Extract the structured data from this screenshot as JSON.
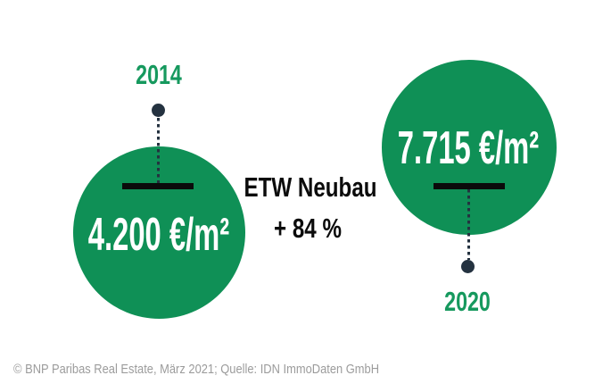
{
  "chart_data": {
    "type": "bar",
    "style": "proportional-circle-pictogram",
    "categories": [
      "2014",
      "2020"
    ],
    "values": [
      4200,
      7715
    ],
    "value_labels": [
      "4.200 €/m²",
      "7.715 €/m²"
    ],
    "unit": "€/m²",
    "title": "ETW Neubau",
    "change_label": "+ 84 %",
    "change_percent": 84,
    "source": "© BNP Paribas Real Estate, März 2021; Quelle: IDN ImmoDaten GmbH",
    "legend": "none",
    "grid": "off"
  },
  "colors": {
    "background": "#FFFFFF",
    "circle_green": "#0F9056",
    "year_green": "#16995E",
    "pin_navy": "#243240",
    "text_black": "#0B0B0B",
    "value_white": "#FFFFFF",
    "source_gray": "#9C9C9C"
  }
}
